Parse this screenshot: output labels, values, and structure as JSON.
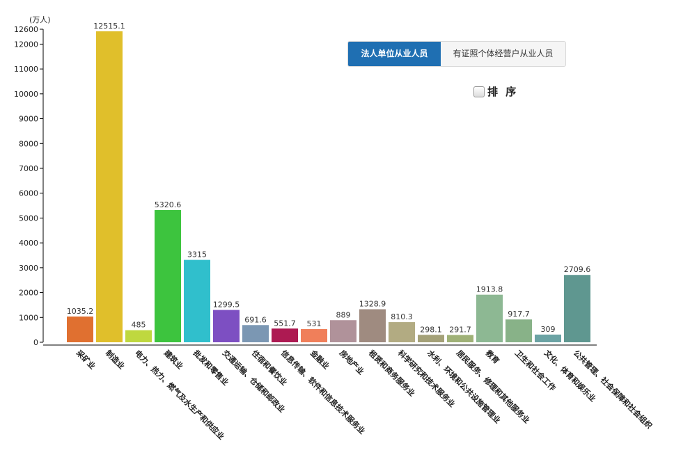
{
  "chart_data": {
    "type": "bar",
    "unit_label": "(万人)",
    "ylim": [
      0,
      12600
    ],
    "y_ticks": [
      0,
      1000,
      2000,
      3000,
      4000,
      5000,
      6000,
      7000,
      8000,
      9000,
      10000,
      11000,
      12000,
      12600
    ],
    "categories": [
      "采矿业",
      "制造业",
      "电力、热力、燃气及水生产和供应业",
      "建筑业",
      "批发和零售业",
      "交通运输、仓储和邮政业",
      "住宿和餐饮业",
      "信息传输、软件和信息技术服务业",
      "金融业",
      "房地产业",
      "租赁和商务服务业",
      "科学研究和技术服务业",
      "水利、环境和公共设施管理业",
      "居民服务、修理和其他服务业",
      "教育",
      "卫生和社会工作",
      "文化、体育和娱乐业",
      "公共管理、社会保障和社会组织"
    ],
    "values": [
      1035.2,
      12515.1,
      485,
      5320.6,
      3315,
      1299.5,
      691.6,
      551.7,
      531,
      889,
      1328.9,
      810.3,
      298.1,
      291.7,
      1913.8,
      917.7,
      309,
      2709.6
    ],
    "value_labels": [
      "1035.2",
      "12515.1",
      "485",
      "5320.6",
      "3315",
      "1299.5",
      "691.6",
      "551.7",
      "531",
      "889",
      "1328.9",
      "810.3",
      "298.1",
      "291.7",
      "1913.8",
      "917.7",
      "309",
      "2709.6"
    ],
    "colors": [
      "#e07030",
      "#e0bf2b",
      "#bfd83f",
      "#3dc43e",
      "#30bfcc",
      "#7d4fc2",
      "#7b97b3",
      "#ad1a52",
      "#f07f5a",
      "#b0929a",
      "#9f8b80",
      "#b2ab82",
      "#a4a178",
      "#9fb177",
      "#8db893",
      "#88b288",
      "#6ba3a4",
      "#5f9790"
    ],
    "legend": "none",
    "grid": false
  },
  "tabs": [
    {
      "label": "法人单位从业人员",
      "active": true
    },
    {
      "label": "有证照个体经营户从业人员",
      "active": false
    }
  ],
  "sort_label": "排 序"
}
